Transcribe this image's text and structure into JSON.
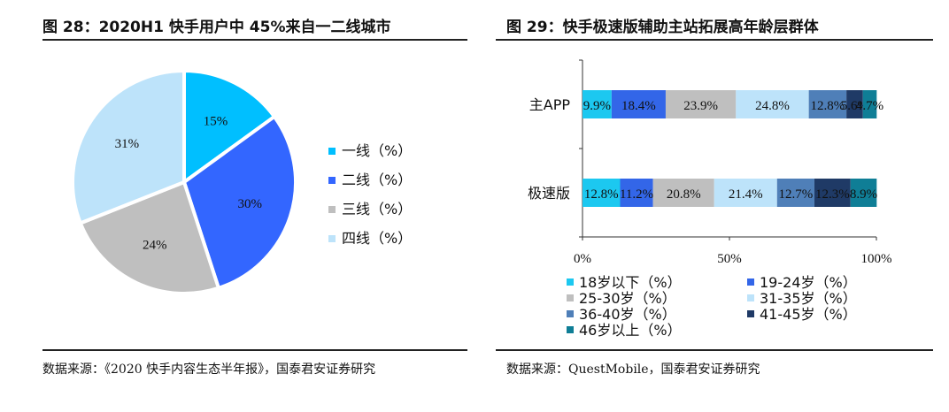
{
  "left": {
    "title": "图 28：2020H1 快手用户中 45%来自一二线城市",
    "source": "数据来源：《2020 快手内容生态半年报》，国泰君安证券研究",
    "chart_data": {
      "type": "pie",
      "labels": [
        "一线（%）",
        "二线（%）",
        "三线（%）",
        "四线（%）"
      ],
      "values": [
        15,
        30,
        24,
        31
      ],
      "data_labels": [
        "15%",
        "30%",
        "24%",
        "31%"
      ],
      "colors": [
        "#00BFFF",
        "#3366FF",
        "#BFBFBF",
        "#BDE3FA"
      ],
      "legend_position": "right"
    }
  },
  "right": {
    "title": "图 29：快手极速版辅助主站拓展高年龄层群体",
    "source": "数据来源：QuestMobile，国泰君安证券研究",
    "chart_data": {
      "type": "bar",
      "orientation": "horizontal",
      "stacked": true,
      "categories": [
        "主APP",
        "极速版"
      ],
      "xlim": [
        0,
        100
      ],
      "xticks": [
        "0%",
        "50%",
        "100%"
      ],
      "legend_position": "bottom",
      "series": [
        {
          "name": "18岁以下（%）",
          "color": "#1CC8F0",
          "values": [
            9.9,
            12.8
          ],
          "labels": [
            "9.9%",
            "12.8%"
          ]
        },
        {
          "name": "19-24岁（%）",
          "color": "#3366E8",
          "values": [
            18.4,
            11.2
          ],
          "labels": [
            "18.4%",
            "11.2%"
          ]
        },
        {
          "name": "25-30岁（%）",
          "color": "#BFBFBF",
          "values": [
            23.9,
            20.8
          ],
          "labels": [
            "23.9%",
            "20.8%"
          ]
        },
        {
          "name": "31-35岁（%）",
          "color": "#BDE3FA",
          "values": [
            24.8,
            21.4
          ],
          "labels": [
            "24.8%",
            "21.4%"
          ]
        },
        {
          "name": "36-40岁（%）",
          "color": "#4F7FB8",
          "values": [
            12.8,
            12.7
          ],
          "labels": [
            "12.8%",
            "12.7%"
          ]
        },
        {
          "name": "41-45岁（%）",
          "color": "#1F3A66",
          "values": [
            5.6,
            12.3
          ],
          "labels": [
            "5.6%",
            "12.3%"
          ]
        },
        {
          "name": "46岁以上（%）",
          "color": "#0F7E96",
          "values": [
            4.7,
            8.9
          ],
          "labels": [
            "4.7%",
            "8.9%"
          ]
        }
      ]
    }
  }
}
